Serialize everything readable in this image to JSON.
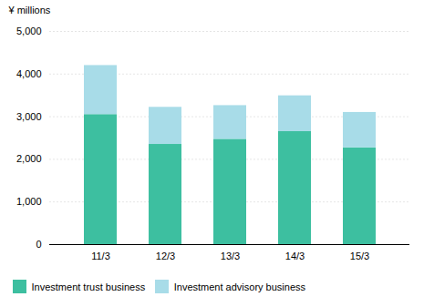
{
  "chart_data": {
    "type": "bar",
    "stacked": true,
    "categories": [
      "11/3",
      "12/3",
      "13/3",
      "14/3",
      "15/3"
    ],
    "series": [
      {
        "name": "Investment trust business",
        "color": "#3dbfa0",
        "values": [
          3050,
          2350,
          2470,
          2650,
          2270
        ]
      },
      {
        "name": "Investment advisory business",
        "color": "#a8dce8",
        "values": [
          1150,
          870,
          790,
          840,
          830
        ]
      }
    ],
    "ylabel": "¥ millions",
    "ylim": [
      0,
      5000
    ],
    "yticks": [
      0,
      {
        "value": 1000,
        "label": "1,000"
      },
      {
        "value": 2000,
        "label": "2,000"
      },
      {
        "value": 3000,
        "label": "3,000"
      },
      {
        "value": 4000,
        "label": "4,000"
      },
      {
        "value": 5000,
        "label": "5,000"
      }
    ],
    "grid": true,
    "legend": "lower left"
  }
}
